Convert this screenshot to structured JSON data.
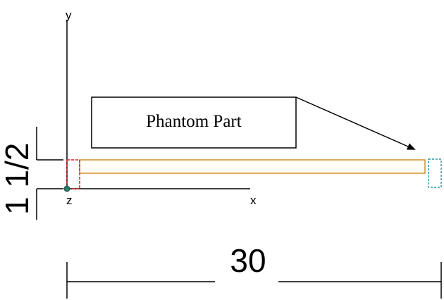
{
  "axes": {
    "y_label": "y",
    "x_label": "x",
    "z_label": "z"
  },
  "callout": {
    "label": "Phantom Part"
  },
  "dimensions": {
    "height_label": "1 1/2",
    "width_label": "30"
  },
  "colors": {
    "part_outline": "#d4902a",
    "phantom_outline": "#d42020",
    "end_marker_outline": "#2a9aa0",
    "origin_dot": "#2e7d6b",
    "line": "#000000"
  }
}
